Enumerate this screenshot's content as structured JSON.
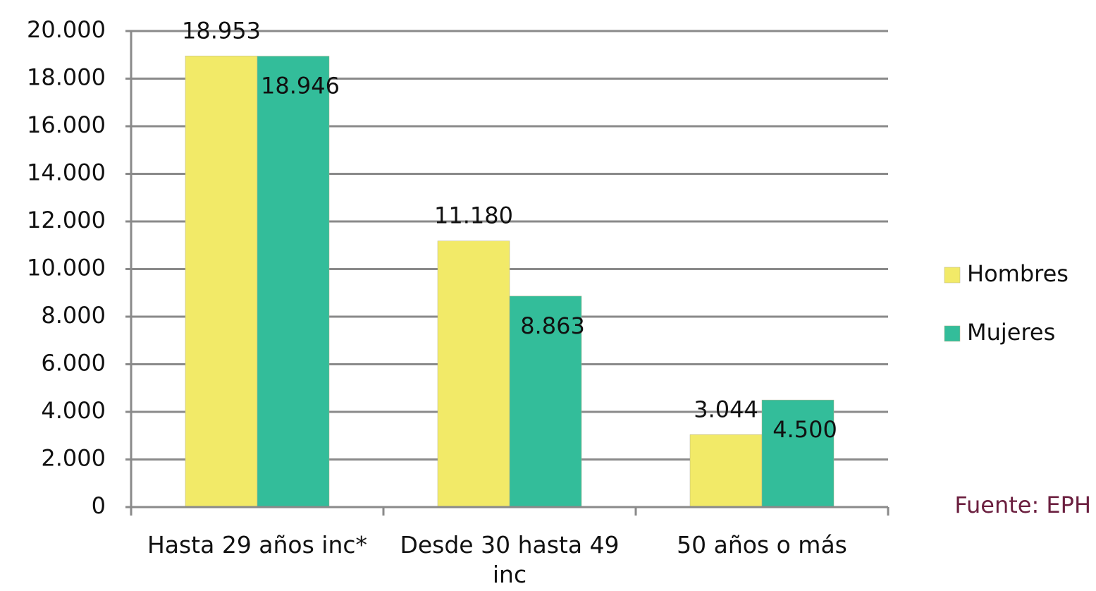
{
  "chart_data": {
    "type": "bar",
    "categories": [
      "Hasta 29 años inc*",
      "Desde 30 hasta 49 inc",
      "50 años o más"
    ],
    "series": [
      {
        "name": "Hombres",
        "color": "#f2ea68",
        "values": [
          18953,
          11180,
          3044
        ],
        "value_labels": [
          "18.953",
          "11.180",
          "3.044"
        ]
      },
      {
        "name": "Mujeres",
        "color": "#33bd9a",
        "values": [
          18946,
          8863,
          4500
        ],
        "value_labels": [
          "18.946",
          "8.863",
          "4.500"
        ]
      }
    ],
    "ylim": [
      0,
      20000
    ],
    "yticks": [
      0,
      {
        "value": 2000,
        "label": "2.000"
      },
      {
        "value": 4000,
        "label": "4.000"
      },
      {
        "value": 6000,
        "label": "6.000"
      },
      {
        "value": 8000,
        "label": "8.000"
      },
      {
        "value": 10000,
        "label": "10.000"
      },
      {
        "value": 12000,
        "label": "12.000"
      },
      {
        "value": 14000,
        "label": "14.000"
      },
      {
        "value": 16000,
        "label": "16.000"
      },
      {
        "value": 18000,
        "label": "18.000"
      },
      {
        "value": 20000,
        "label": "20.000"
      }
    ],
    "grid": true,
    "legend": "right",
    "source": "Fuente: EPH"
  }
}
